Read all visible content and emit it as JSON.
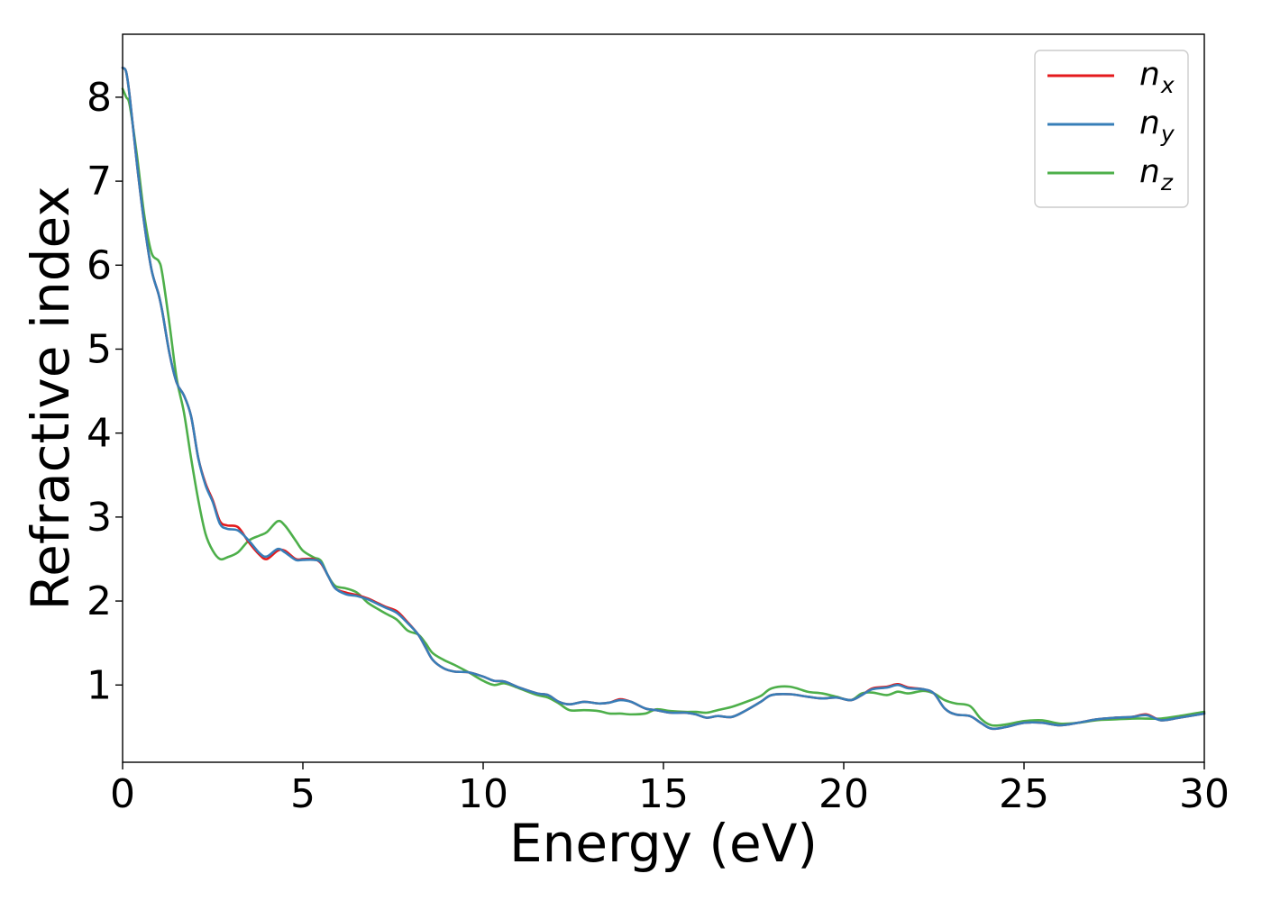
{
  "chart_data": {
    "type": "line",
    "xlabel": "Energy (eV)",
    "ylabel": "Refractive index",
    "xlim": [
      0,
      30
    ],
    "ylim": [
      0.08,
      8.75
    ],
    "x_ticks": [
      "0",
      "5",
      "10",
      "15",
      "20",
      "25",
      "30"
    ],
    "y_ticks": [
      "1",
      "2",
      "3",
      "4",
      "5",
      "6",
      "7",
      "8"
    ],
    "grid": false,
    "legend_position": "top-right",
    "series": [
      {
        "name": "n",
        "sub": "x",
        "color": "#e41a1c",
        "points": [
          [
            0,
            8.35
          ],
          [
            0.1,
            8.3
          ],
          [
            0.2,
            8.0
          ],
          [
            0.4,
            7.2
          ],
          [
            0.6,
            6.5
          ],
          [
            0.8,
            5.95
          ],
          [
            1.0,
            5.65
          ],
          [
            1.1,
            5.45
          ],
          [
            1.3,
            4.95
          ],
          [
            1.5,
            4.6
          ],
          [
            1.7,
            4.45
          ],
          [
            1.9,
            4.2
          ],
          [
            2.1,
            3.7
          ],
          [
            2.3,
            3.4
          ],
          [
            2.5,
            3.2
          ],
          [
            2.7,
            2.95
          ],
          [
            2.9,
            2.9
          ],
          [
            3.2,
            2.88
          ],
          [
            3.5,
            2.7
          ],
          [
            3.8,
            2.55
          ],
          [
            4.0,
            2.5
          ],
          [
            4.3,
            2.6
          ],
          [
            4.5,
            2.6
          ],
          [
            4.8,
            2.5
          ],
          [
            5.0,
            2.5
          ],
          [
            5.3,
            2.5
          ],
          [
            5.5,
            2.45
          ],
          [
            5.7,
            2.3
          ],
          [
            5.9,
            2.15
          ],
          [
            6.2,
            2.1
          ],
          [
            6.5,
            2.07
          ],
          [
            6.8,
            2.03
          ],
          [
            7.1,
            1.97
          ],
          [
            7.3,
            1.93
          ],
          [
            7.6,
            1.88
          ],
          [
            7.9,
            1.75
          ],
          [
            8.2,
            1.6
          ],
          [
            8.4,
            1.45
          ],
          [
            8.6,
            1.3
          ],
          [
            8.9,
            1.2
          ],
          [
            9.2,
            1.16
          ],
          [
            9.6,
            1.15
          ],
          [
            10.0,
            1.1
          ],
          [
            10.3,
            1.05
          ],
          [
            10.6,
            1.04
          ],
          [
            11.0,
            0.97
          ],
          [
            11.5,
            0.9
          ],
          [
            11.8,
            0.88
          ],
          [
            12.1,
            0.8
          ],
          [
            12.4,
            0.77
          ],
          [
            12.8,
            0.8
          ],
          [
            13.2,
            0.78
          ],
          [
            13.5,
            0.79
          ],
          [
            13.8,
            0.83
          ],
          [
            14.1,
            0.8
          ],
          [
            14.5,
            0.72
          ],
          [
            14.8,
            0.7
          ],
          [
            15.2,
            0.67
          ],
          [
            15.6,
            0.67
          ],
          [
            15.9,
            0.65
          ],
          [
            16.2,
            0.61
          ],
          [
            16.5,
            0.63
          ],
          [
            16.9,
            0.62
          ],
          [
            17.3,
            0.7
          ],
          [
            17.7,
            0.8
          ],
          [
            18.0,
            0.88
          ],
          [
            18.5,
            0.89
          ],
          [
            19.0,
            0.86
          ],
          [
            19.4,
            0.84
          ],
          [
            19.8,
            0.85
          ],
          [
            20.2,
            0.82
          ],
          [
            20.5,
            0.88
          ],
          [
            20.8,
            0.96
          ],
          [
            21.2,
            0.98
          ],
          [
            21.5,
            1.01
          ],
          [
            21.8,
            0.97
          ],
          [
            22.2,
            0.95
          ],
          [
            22.5,
            0.9
          ],
          [
            22.8,
            0.72
          ],
          [
            23.1,
            0.65
          ],
          [
            23.5,
            0.63
          ],
          [
            23.8,
            0.55
          ],
          [
            24.1,
            0.48
          ],
          [
            24.5,
            0.5
          ],
          [
            25.0,
            0.55
          ],
          [
            25.5,
            0.55
          ],
          [
            26.0,
            0.52
          ],
          [
            26.5,
            0.55
          ],
          [
            27.0,
            0.59
          ],
          [
            27.5,
            0.61
          ],
          [
            28.0,
            0.62
          ],
          [
            28.4,
            0.65
          ],
          [
            28.8,
            0.58
          ],
          [
            29.3,
            0.61
          ],
          [
            30,
            0.66
          ]
        ]
      },
      {
        "name": "n",
        "sub": "y",
        "color": "#377eb8",
        "points": [
          [
            0,
            8.35
          ],
          [
            0.1,
            8.3
          ],
          [
            0.2,
            8.0
          ],
          [
            0.4,
            7.2
          ],
          [
            0.6,
            6.5
          ],
          [
            0.8,
            5.95
          ],
          [
            1.0,
            5.65
          ],
          [
            1.1,
            5.45
          ],
          [
            1.3,
            4.95
          ],
          [
            1.5,
            4.6
          ],
          [
            1.7,
            4.45
          ],
          [
            1.9,
            4.2
          ],
          [
            2.1,
            3.7
          ],
          [
            2.3,
            3.38
          ],
          [
            2.5,
            3.18
          ],
          [
            2.7,
            2.92
          ],
          [
            2.9,
            2.86
          ],
          [
            3.2,
            2.84
          ],
          [
            3.5,
            2.72
          ],
          [
            3.8,
            2.57
          ],
          [
            4.0,
            2.53
          ],
          [
            4.3,
            2.62
          ],
          [
            4.5,
            2.58
          ],
          [
            4.8,
            2.49
          ],
          [
            5.0,
            2.49
          ],
          [
            5.3,
            2.49
          ],
          [
            5.5,
            2.46
          ],
          [
            5.7,
            2.3
          ],
          [
            5.9,
            2.15
          ],
          [
            6.2,
            2.08
          ],
          [
            6.5,
            2.06
          ],
          [
            6.8,
            2.02
          ],
          [
            7.1,
            1.96
          ],
          [
            7.3,
            1.92
          ],
          [
            7.6,
            1.86
          ],
          [
            7.9,
            1.74
          ],
          [
            8.2,
            1.6
          ],
          [
            8.4,
            1.45
          ],
          [
            8.6,
            1.3
          ],
          [
            8.9,
            1.2
          ],
          [
            9.2,
            1.16
          ],
          [
            9.6,
            1.15
          ],
          [
            10.0,
            1.1
          ],
          [
            10.3,
            1.05
          ],
          [
            10.6,
            1.04
          ],
          [
            11.0,
            0.97
          ],
          [
            11.5,
            0.9
          ],
          [
            11.8,
            0.88
          ],
          [
            12.1,
            0.8
          ],
          [
            12.4,
            0.77
          ],
          [
            12.8,
            0.8
          ],
          [
            13.2,
            0.78
          ],
          [
            13.5,
            0.79
          ],
          [
            13.8,
            0.82
          ],
          [
            14.1,
            0.8
          ],
          [
            14.5,
            0.72
          ],
          [
            14.8,
            0.7
          ],
          [
            15.2,
            0.67
          ],
          [
            15.6,
            0.67
          ],
          [
            15.9,
            0.65
          ],
          [
            16.2,
            0.61
          ],
          [
            16.5,
            0.63
          ],
          [
            16.9,
            0.62
          ],
          [
            17.3,
            0.7
          ],
          [
            17.7,
            0.8
          ],
          [
            18.0,
            0.88
          ],
          [
            18.5,
            0.89
          ],
          [
            19.0,
            0.86
          ],
          [
            19.4,
            0.84
          ],
          [
            19.8,
            0.85
          ],
          [
            20.2,
            0.82
          ],
          [
            20.5,
            0.88
          ],
          [
            20.8,
            0.95
          ],
          [
            21.2,
            0.97
          ],
          [
            21.5,
            1.0
          ],
          [
            21.8,
            0.96
          ],
          [
            22.2,
            0.95
          ],
          [
            22.5,
            0.9
          ],
          [
            22.8,
            0.72
          ],
          [
            23.1,
            0.65
          ],
          [
            23.5,
            0.63
          ],
          [
            23.8,
            0.55
          ],
          [
            24.1,
            0.48
          ],
          [
            24.5,
            0.5
          ],
          [
            25.0,
            0.55
          ],
          [
            25.5,
            0.55
          ],
          [
            26.0,
            0.52
          ],
          [
            26.5,
            0.55
          ],
          [
            27.0,
            0.59
          ],
          [
            27.5,
            0.61
          ],
          [
            28.0,
            0.62
          ],
          [
            28.4,
            0.64
          ],
          [
            28.8,
            0.58
          ],
          [
            29.3,
            0.61
          ],
          [
            30,
            0.66
          ]
        ]
      },
      {
        "name": "n",
        "sub": "z",
        "color": "#4daf4a",
        "points": [
          [
            0,
            8.1
          ],
          [
            0.1,
            8.0
          ],
          [
            0.2,
            7.9
          ],
          [
            0.4,
            7.3
          ],
          [
            0.6,
            6.6
          ],
          [
            0.8,
            6.15
          ],
          [
            1.0,
            6.05
          ],
          [
            1.1,
            5.9
          ],
          [
            1.3,
            5.3
          ],
          [
            1.5,
            4.65
          ],
          [
            1.7,
            4.25
          ],
          [
            1.9,
            3.7
          ],
          [
            2.1,
            3.2
          ],
          [
            2.3,
            2.8
          ],
          [
            2.5,
            2.6
          ],
          [
            2.7,
            2.5
          ],
          [
            2.9,
            2.52
          ],
          [
            3.2,
            2.58
          ],
          [
            3.5,
            2.72
          ],
          [
            3.8,
            2.78
          ],
          [
            4.0,
            2.82
          ],
          [
            4.3,
            2.95
          ],
          [
            4.5,
            2.9
          ],
          [
            4.8,
            2.72
          ],
          [
            5.0,
            2.6
          ],
          [
            5.3,
            2.52
          ],
          [
            5.5,
            2.48
          ],
          [
            5.7,
            2.3
          ],
          [
            5.9,
            2.18
          ],
          [
            6.2,
            2.15
          ],
          [
            6.5,
            2.1
          ],
          [
            6.8,
            1.98
          ],
          [
            7.1,
            1.9
          ],
          [
            7.3,
            1.85
          ],
          [
            7.6,
            1.78
          ],
          [
            7.9,
            1.65
          ],
          [
            8.2,
            1.6
          ],
          [
            8.4,
            1.5
          ],
          [
            8.6,
            1.38
          ],
          [
            8.9,
            1.3
          ],
          [
            9.2,
            1.24
          ],
          [
            9.6,
            1.15
          ],
          [
            10.0,
            1.05
          ],
          [
            10.3,
            1.0
          ],
          [
            10.6,
            1.02
          ],
          [
            11.0,
            0.96
          ],
          [
            11.5,
            0.88
          ],
          [
            11.8,
            0.85
          ],
          [
            12.1,
            0.78
          ],
          [
            12.4,
            0.7
          ],
          [
            12.8,
            0.7
          ],
          [
            13.2,
            0.69
          ],
          [
            13.5,
            0.66
          ],
          [
            13.8,
            0.66
          ],
          [
            14.1,
            0.65
          ],
          [
            14.5,
            0.66
          ],
          [
            14.8,
            0.71
          ],
          [
            15.2,
            0.69
          ],
          [
            15.6,
            0.68
          ],
          [
            15.9,
            0.68
          ],
          [
            16.2,
            0.67
          ],
          [
            16.5,
            0.7
          ],
          [
            16.9,
            0.74
          ],
          [
            17.3,
            0.8
          ],
          [
            17.7,
            0.87
          ],
          [
            18.0,
            0.96
          ],
          [
            18.5,
            0.98
          ],
          [
            19.0,
            0.92
          ],
          [
            19.4,
            0.9
          ],
          [
            19.8,
            0.86
          ],
          [
            20.2,
            0.82
          ],
          [
            20.5,
            0.9
          ],
          [
            20.8,
            0.91
          ],
          [
            21.2,
            0.88
          ],
          [
            21.5,
            0.92
          ],
          [
            21.8,
            0.9
          ],
          [
            22.2,
            0.93
          ],
          [
            22.5,
            0.9
          ],
          [
            22.8,
            0.82
          ],
          [
            23.1,
            0.78
          ],
          [
            23.5,
            0.75
          ],
          [
            23.8,
            0.6
          ],
          [
            24.1,
            0.52
          ],
          [
            24.5,
            0.53
          ],
          [
            25.0,
            0.57
          ],
          [
            25.5,
            0.58
          ],
          [
            26.0,
            0.54
          ],
          [
            26.5,
            0.55
          ],
          [
            27.0,
            0.58
          ],
          [
            27.5,
            0.59
          ],
          [
            28.0,
            0.6
          ],
          [
            28.4,
            0.6
          ],
          [
            28.8,
            0.6
          ],
          [
            29.3,
            0.63
          ],
          [
            30,
            0.68
          ]
        ]
      }
    ]
  }
}
